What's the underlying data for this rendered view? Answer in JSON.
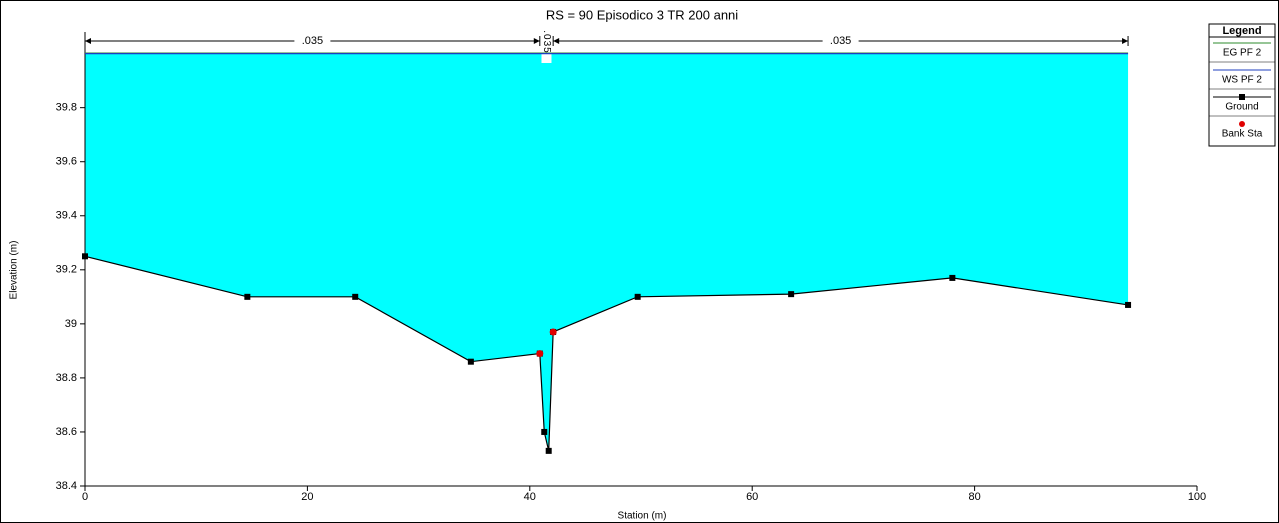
{
  "chart_data": {
    "type": "line",
    "title": "RS = 90  Episodico 3 TR 200 anni",
    "x_label": "Station (m)",
    "y_label": "Elevation (m)",
    "xlim": [
      0,
      100
    ],
    "ylim": [
      38.4,
      40.08
    ],
    "xticks": [
      0,
      20,
      40,
      60,
      80,
      100
    ],
    "yticks": [
      38.4,
      38.6,
      38.8,
      39.0,
      39.2,
      39.4,
      39.6,
      39.8
    ],
    "legend_title": "Legend",
    "water_fill": "#00ffff",
    "series": [
      {
        "name": "EG PF 2",
        "color": "#2e8b2e",
        "x": [
          0,
          93.8
        ],
        "values": [
          40.002,
          40.002
        ]
      },
      {
        "name": "WS PF 2",
        "color": "#1f3fbf",
        "x": [
          0,
          93.8
        ],
        "values": [
          40.0,
          40.0
        ]
      },
      {
        "name": "Ground",
        "color": "#000000",
        "x": [
          0,
          14.6,
          24.3,
          34.7,
          40.9,
          41.3,
          41.7,
          42.1,
          49.7,
          63.5,
          78.0,
          93.8
        ],
        "values": [
          39.25,
          39.1,
          39.1,
          38.86,
          38.89,
          38.6,
          38.53,
          38.97,
          39.1,
          39.11,
          39.17,
          39.07
        ]
      },
      {
        "name": "Bank Sta",
        "color": "#e00000",
        "x": [
          40.9,
          42.1
        ],
        "values": [
          38.89,
          38.97
        ]
      }
    ],
    "manning": [
      {
        "label": ".035",
        "from": 0,
        "to": 40.9
      },
      {
        "label": ".035",
        "from": 40.9,
        "to": 42.1
      },
      {
        "label": ".035",
        "from": 42.1,
        "to": 93.8
      }
    ]
  }
}
